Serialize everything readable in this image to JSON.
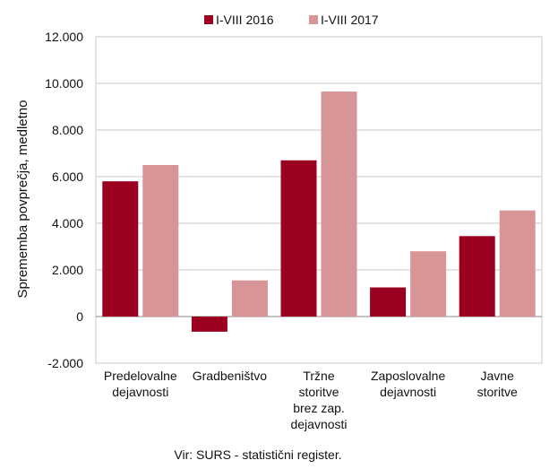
{
  "chart_data": {
    "type": "bar",
    "categories": [
      [
        "Predelovalne",
        "dejavnosti"
      ],
      [
        "Gradbeništvo"
      ],
      [
        "Tržne",
        "storitve",
        "brez zap.",
        "dejavnosti"
      ],
      [
        "Zaposlovalne",
        "dejavnosti"
      ],
      [
        "Javne",
        "storitve"
      ]
    ],
    "series": [
      {
        "name": "I-VIII 2016",
        "color": "#9b0020",
        "values": [
          5800,
          -650,
          6700,
          1250,
          3450
        ]
      },
      {
        "name": "I-VIII 2017",
        "color": "#d89597",
        "values": [
          6500,
          1550,
          9650,
          2800,
          4550
        ]
      }
    ],
    "ylabel": "Sprememba povprečja, medletno",
    "ylim": [
      -2000,
      12000
    ],
    "yticks": [
      -2000,
      0,
      2000,
      4000,
      6000,
      8000,
      10000,
      12000
    ],
    "ytick_labels": [
      "-2.000",
      "0",
      "2.000",
      "4.000",
      "6.000",
      "8.000",
      "10.000",
      "12.000"
    ],
    "grid": true,
    "legend": "top-center",
    "source": "Vir: SURS - statistični register."
  }
}
